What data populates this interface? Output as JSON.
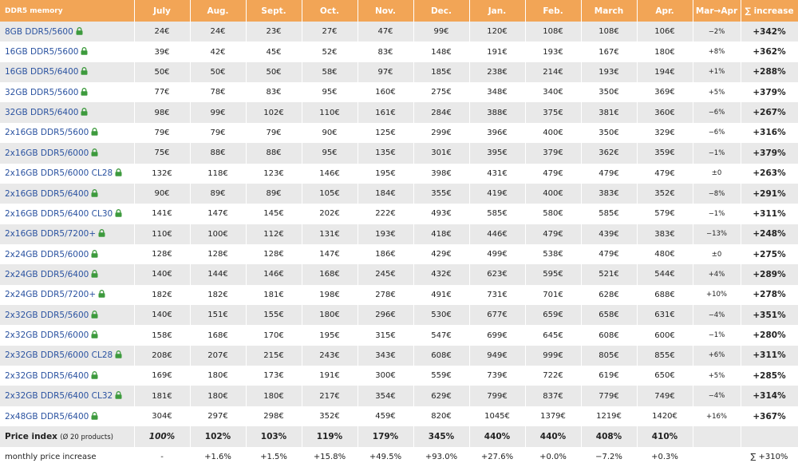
{
  "header": [
    "DDR5 memory",
    "July",
    "Aug.",
    "Sept.",
    "Oct.",
    "Nov.",
    "Dec.",
    "Jan.",
    "Feb.",
    "March",
    "Apr.",
    "Mar→Apr",
    "∑ increase"
  ],
  "rows": [
    {
      "name": "8GB DDR5/5600",
      "cells": [
        "24€",
        "24€",
        "23€",
        "27€",
        "47€",
        "99€",
        "120€",
        "108€",
        "108€",
        "106€",
        "−2%",
        "+342%"
      ]
    },
    {
      "name": "16GB DDR5/5600",
      "cells": [
        "39€",
        "42€",
        "45€",
        "52€",
        "83€",
        "148€",
        "191€",
        "193€",
        "167€",
        "180€",
        "+8%",
        "+362%"
      ]
    },
    {
      "name": "16GB DDR5/6400",
      "cells": [
        "50€",
        "50€",
        "50€",
        "58€",
        "97€",
        "185€",
        "238€",
        "214€",
        "193€",
        "194€",
        "+1%",
        "+288%"
      ]
    },
    {
      "name": "32GB DDR5/5600",
      "cells": [
        "77€",
        "78€",
        "83€",
        "95€",
        "160€",
        "275€",
        "348€",
        "340€",
        "350€",
        "369€",
        "+5%",
        "+379%"
      ]
    },
    {
      "name": "32GB DDR5/6400",
      "cells": [
        "98€",
        "99€",
        "102€",
        "110€",
        "161€",
        "284€",
        "388€",
        "375€",
        "381€",
        "360€",
        "−6%",
        "+267%"
      ]
    },
    {
      "name": "2x16GB DDR5/5600",
      "cells": [
        "79€",
        "79€",
        "79€",
        "90€",
        "125€",
        "299€",
        "396€",
        "400€",
        "350€",
        "329€",
        "−6%",
        "+316%"
      ]
    },
    {
      "name": "2x16GB DDR5/6000",
      "cells": [
        "75€",
        "88€",
        "88€",
        "95€",
        "135€",
        "301€",
        "395€",
        "379€",
        "362€",
        "359€",
        "−1%",
        "+379%"
      ]
    },
    {
      "name": "2x16GB DDR5/6000 CL28",
      "cells": [
        "132€",
        "118€",
        "123€",
        "146€",
        "195€",
        "398€",
        "431€",
        "479€",
        "479€",
        "479€",
        "±0",
        "+263%"
      ]
    },
    {
      "name": "2x16GB DDR5/6400",
      "cells": [
        "90€",
        "89€",
        "89€",
        "105€",
        "184€",
        "355€",
        "419€",
        "400€",
        "383€",
        "352€",
        "−8%",
        "+291%"
      ]
    },
    {
      "name": "2x16GB DDR5/6400 CL30",
      "cells": [
        "141€",
        "147€",
        "145€",
        "202€",
        "222€",
        "493€",
        "585€",
        "580€",
        "585€",
        "579€",
        "−1%",
        "+311%"
      ]
    },
    {
      "name": "2x16GB DDR5/7200+",
      "cells": [
        "110€",
        "100€",
        "112€",
        "131€",
        "193€",
        "418€",
        "446€",
        "479€",
        "439€",
        "383€",
        "−13%",
        "+248%"
      ]
    },
    {
      "name": "2x24GB DDR5/6000",
      "cells": [
        "128€",
        "128€",
        "128€",
        "147€",
        "186€",
        "429€",
        "499€",
        "538€",
        "479€",
        "480€",
        "±0",
        "+275%"
      ]
    },
    {
      "name": "2x24GB DDR5/6400",
      "cells": [
        "140€",
        "144€",
        "146€",
        "168€",
        "245€",
        "432€",
        "623€",
        "595€",
        "521€",
        "544€",
        "+4%",
        "+289%"
      ]
    },
    {
      "name": "2x24GB DDR5/7200+",
      "cells": [
        "182€",
        "182€",
        "181€",
        "198€",
        "278€",
        "491€",
        "731€",
        "701€",
        "628€",
        "688€",
        "+10%",
        "+278%"
      ]
    },
    {
      "name": "2x32GB DDR5/5600",
      "cells": [
        "140€",
        "151€",
        "155€",
        "180€",
        "296€",
        "530€",
        "677€",
        "659€",
        "658€",
        "631€",
        "−4%",
        "+351%"
      ]
    },
    {
      "name": "2x32GB DDR5/6000",
      "cells": [
        "158€",
        "168€",
        "170€",
        "195€",
        "315€",
        "547€",
        "699€",
        "645€",
        "608€",
        "600€",
        "−1%",
        "+280%"
      ]
    },
    {
      "name": "2x32GB DDR5/6000 CL28",
      "cells": [
        "208€",
        "207€",
        "215€",
        "243€",
        "343€",
        "608€",
        "949€",
        "999€",
        "805€",
        "855€",
        "+6%",
        "+311%"
      ]
    },
    {
      "name": "2x32GB DDR5/6400",
      "cells": [
        "169€",
        "180€",
        "173€",
        "191€",
        "300€",
        "559€",
        "739€",
        "722€",
        "619€",
        "650€",
        "+5%",
        "+285%"
      ]
    },
    {
      "name": "2x32GB DDR5/6400 CL32",
      "cells": [
        "181€",
        "180€",
        "180€",
        "217€",
        "354€",
        "629€",
        "799€",
        "837€",
        "779€",
        "749€",
        "−4%",
        "+314%"
      ]
    },
    {
      "name": "2x48GB DDR5/6400",
      "cells": [
        "304€",
        "297€",
        "298€",
        "352€",
        "459€",
        "820€",
        "1045€",
        "1379€",
        "1219€",
        "1420€",
        "+16%",
        "+367%"
      ]
    }
  ],
  "price_index": {
    "label": "Price index",
    "note": "(Ø 20 products)",
    "cells": [
      "100%",
      "102%",
      "103%",
      "119%",
      "179%",
      "345%",
      "440%",
      "440%",
      "408%",
      "410%"
    ]
  },
  "monthly": {
    "label": "monthly price increase",
    "cells": [
      "-",
      "+1.6%",
      "+1.5%",
      "+15.8%",
      "+49.5%",
      "+93.0%",
      "+27.6%",
      "+0.0%",
      "−7.2%",
      "+0.3%"
    ],
    "total": "∑ +310%"
  }
}
